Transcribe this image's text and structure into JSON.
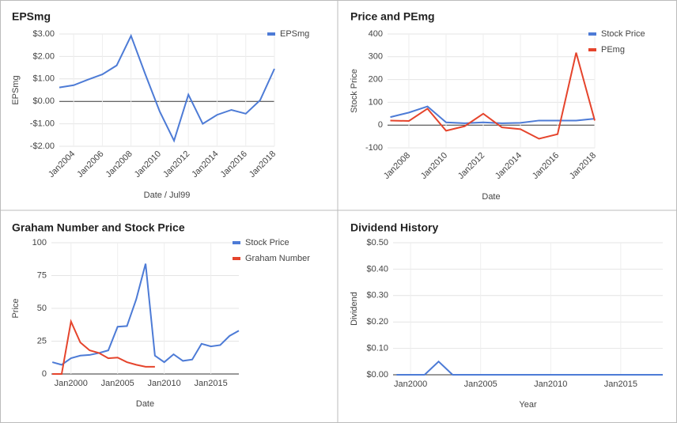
{
  "chart_data": [
    {
      "type": "line",
      "title": "EPSmg",
      "x_label": "Date / Jul99",
      "y_label": "EPSmg",
      "x": [
        2003,
        2004,
        2005,
        2006,
        2007,
        2008,
        2009,
        2010,
        2011,
        2012,
        2013,
        2014,
        2015,
        2016,
        2017,
        2018
      ],
      "series": [
        {
          "name": "EPSmg",
          "color": "#4d7bd6",
          "values": [
            0.62,
            0.72,
            0.97,
            1.2,
            1.6,
            2.92,
            1.2,
            -0.45,
            -1.75,
            0.3,
            -1.0,
            -0.6,
            -0.38,
            -0.55,
            0.05,
            1.45
          ]
        }
      ],
      "xlim": [
        2003,
        2018
      ],
      "xticks": [
        {
          "value": 2004,
          "label": "Jan2004"
        },
        {
          "value": 2006,
          "label": "Jan2006"
        },
        {
          "value": 2008,
          "label": "Jan2008"
        },
        {
          "value": 2010,
          "label": "Jan2010"
        },
        {
          "value": 2012,
          "label": "Jan2012"
        },
        {
          "value": 2014,
          "label": "Jan2014"
        },
        {
          "value": 2016,
          "label": "Jan2016"
        },
        {
          "value": 2018,
          "label": "Jan2018"
        }
      ],
      "ylim": [
        -2,
        3
      ],
      "yticks": [
        {
          "value": 3,
          "label": "$3.00"
        },
        {
          "value": 2,
          "label": "$2.00"
        },
        {
          "value": 1,
          "label": "$1.00"
        },
        {
          "value": 0,
          "label": "$0.00"
        },
        {
          "value": -1,
          "label": "-$1.00"
        },
        {
          "value": -2,
          "label": "-$2.00"
        }
      ],
      "grid": true,
      "legend": "right",
      "x_rotated": true
    },
    {
      "type": "line",
      "title": "Price and PEmg",
      "x_label": "Date",
      "y_label": "Stock Price",
      "x": [
        2007,
        2008,
        2009,
        2010,
        2011,
        2012,
        2013,
        2014,
        2015,
        2016,
        2017,
        2018
      ],
      "series": [
        {
          "name": "Stock Price",
          "color": "#4d7bd6",
          "values": [
            35,
            55,
            82,
            12,
            8,
            12,
            8,
            10,
            20,
            20,
            20,
            28
          ]
        },
        {
          "name": "PEmg",
          "color": "#e5442c",
          "values": [
            20,
            18,
            72,
            -25,
            -5,
            50,
            -10,
            -18,
            -60,
            -40,
            318,
            20
          ]
        }
      ],
      "xlim": [
        2006.85,
        2018
      ],
      "xticks": [
        {
          "value": 2008,
          "label": "Jan2008"
        },
        {
          "value": 2010,
          "label": "Jan2010"
        },
        {
          "value": 2012,
          "label": "Jan2012"
        },
        {
          "value": 2014,
          "label": "Jan2014"
        },
        {
          "value": 2016,
          "label": "Jan2016"
        },
        {
          "value": 2018,
          "label": "Jan2018"
        }
      ],
      "ylim": [
        -100,
        400
      ],
      "yticks": [
        400,
        300,
        200,
        100,
        0,
        -100
      ],
      "grid": true,
      "legend": "right",
      "x_rotated": true
    },
    {
      "type": "line",
      "title": "Graham Number and Stock Price",
      "x_label": "Date",
      "y_label": "Price",
      "x": [
        1998,
        1999,
        2000,
        2001,
        2002,
        2003,
        2004,
        2005,
        2006,
        2007,
        2008,
        2009,
        2010,
        2011,
        2012,
        2013,
        2014,
        2015,
        2016,
        2017,
        2018
      ],
      "series": [
        {
          "name": "Stock Price",
          "color": "#4d7bd6",
          "values": [
            9,
            7,
            12,
            14,
            14.5,
            16,
            18,
            36,
            36.5,
            57,
            84,
            14,
            9,
            15,
            10,
            11,
            23,
            21,
            22,
            29,
            33
          ]
        },
        {
          "name": "Graham Number",
          "color": "#e5442c",
          "values": [
            0,
            0,
            40,
            24,
            18,
            16,
            12,
            12.5,
            9,
            7,
            5.5,
            5.5,
            null,
            null,
            null,
            null,
            null,
            null,
            null,
            null,
            null
          ]
        }
      ],
      "xlim": [
        1997.9,
        2018
      ],
      "xticks": [
        {
          "value": 2000,
          "label": "Jan2000"
        },
        {
          "value": 2005,
          "label": "Jan2005"
        },
        {
          "value": 2010,
          "label": "Jan2010"
        },
        {
          "value": 2015,
          "label": "Jan2015"
        }
      ],
      "ylim": [
        0,
        100
      ],
      "yticks": [
        100,
        75,
        50,
        25,
        0
      ],
      "grid": true,
      "legend": "right",
      "x_rotated": false
    },
    {
      "type": "line",
      "title": "Dividend History",
      "x_label": "Year",
      "y_label": "Dividend",
      "x": [
        1999,
        2000,
        2001,
        2002,
        2003,
        2004,
        2005,
        2006,
        2007,
        2008,
        2009,
        2010,
        2011,
        2012,
        2013,
        2014,
        2015,
        2016,
        2017,
        2018
      ],
      "series": [
        {
          "color": "#4d7bd6",
          "values": [
            0,
            0,
            0,
            0.05,
            0,
            0,
            0,
            0,
            0,
            0,
            0,
            0,
            0,
            0,
            0,
            0,
            0,
            0,
            0,
            0
          ]
        }
      ],
      "xlim": [
        1998.75,
        2018
      ],
      "xticks": [
        {
          "value": 2000,
          "label": "Jan2000"
        },
        {
          "value": 2005,
          "label": "Jan2005"
        },
        {
          "value": 2010,
          "label": "Jan2010"
        },
        {
          "value": 2015,
          "label": "Jan2015"
        }
      ],
      "ylim": [
        0,
        0.5
      ],
      "yticks": [
        {
          "value": 0.5,
          "label": "$0.50"
        },
        {
          "value": 0.4,
          "label": "$0.40"
        },
        {
          "value": 0.3,
          "label": "$0.30"
        },
        {
          "value": 0.2,
          "label": "$0.20"
        },
        {
          "value": 0.1,
          "label": "$0.10"
        },
        {
          "value": 0,
          "label": "$0.00"
        }
      ],
      "grid": true,
      "x_rotated": false
    }
  ]
}
